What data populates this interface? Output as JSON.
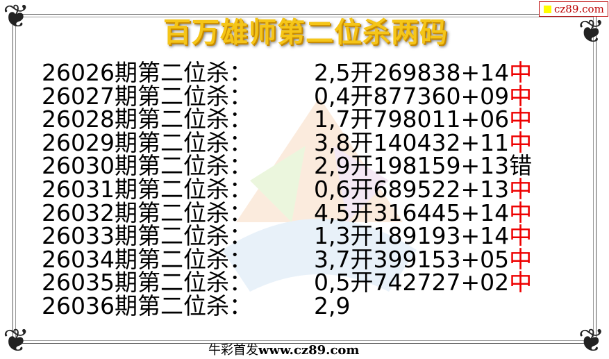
{
  "title": "百万雄师第二位杀两码",
  "badge": "cz89.com",
  "rows": [
    {
      "period": "26026期第二位杀：",
      "kill": "2,5",
      "open_label": "开",
      "draw": "269838+14",
      "result": "中"
    },
    {
      "period": "26027期第二位杀：",
      "kill": "0,4",
      "open_label": "开",
      "draw": "877360+09",
      "result": "中"
    },
    {
      "period": "26028期第二位杀：",
      "kill": "1,7",
      "open_label": "开",
      "draw": "798011+06",
      "result": "中"
    },
    {
      "period": "26029期第二位杀：",
      "kill": "3,8",
      "open_label": "开",
      "draw": "140432+11",
      "result": "中"
    },
    {
      "period": "26030期第二位杀：",
      "kill": "2,9",
      "open_label": "开",
      "draw": "198159+13",
      "result": "错"
    },
    {
      "period": "26031期第二位杀：",
      "kill": "0,6",
      "open_label": "开",
      "draw": "689522+13",
      "result": "中"
    },
    {
      "period": "26032期第二位杀：",
      "kill": "4,5",
      "open_label": "开",
      "draw": "316445+14",
      "result": "中"
    },
    {
      "period": "26033期第二位杀：",
      "kill": "1,3",
      "open_label": "开",
      "draw": "189193+14",
      "result": "中"
    },
    {
      "period": "26034期第二位杀：",
      "kill": "3,7",
      "open_label": "开",
      "draw": "399153+05",
      "result": "中"
    },
    {
      "period": "26035期第二位杀：",
      "kill": "0,5",
      "open_label": "开",
      "draw": "742727+02",
      "result": "中"
    },
    {
      "period": "26036期第二位杀：",
      "kill": "2,9"
    }
  ],
  "footer": {
    "prefix": "牛彩首发",
    "site": "www.cz89.com"
  },
  "colors": {
    "hit": "#e00000",
    "miss": "#000000",
    "title": "#f5c518"
  }
}
